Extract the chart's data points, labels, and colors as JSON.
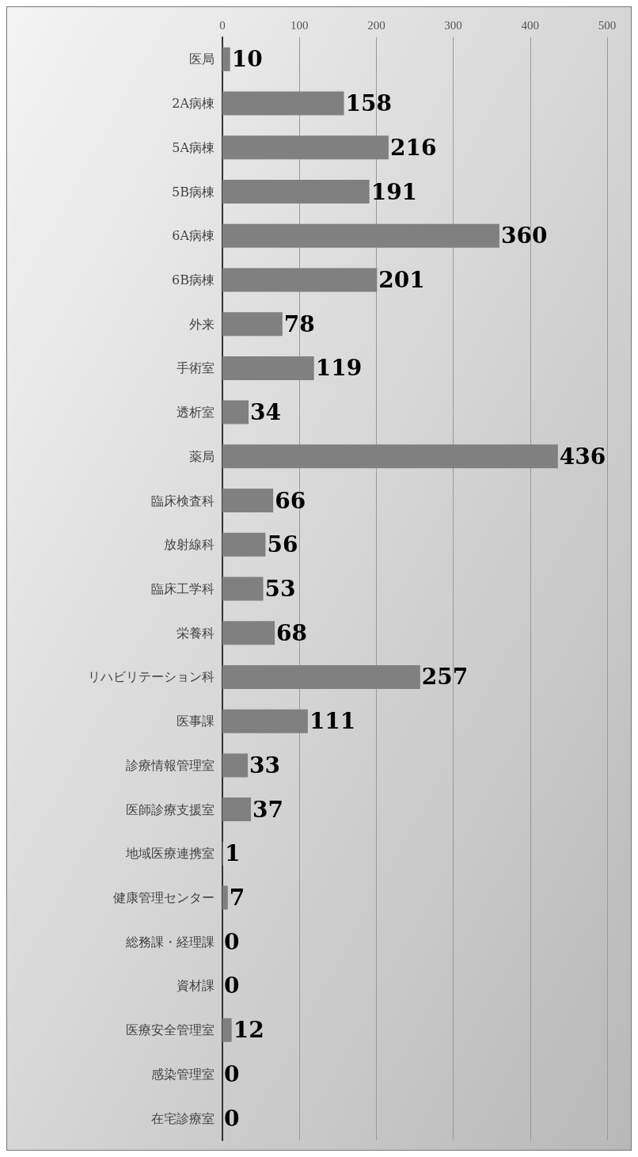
{
  "chart_data": {
    "type": "bar",
    "orientation": "horizontal",
    "categories": [
      "医局",
      "2A病棟",
      "5A病棟",
      "5B病棟",
      "6A病棟",
      "6B病棟",
      "外来",
      "手術室",
      "透析室",
      "薬局",
      "臨床検査科",
      "放射線科",
      "臨床工学科",
      "栄養科",
      "リハビリテーション科",
      "医事課",
      "診療情報管理室",
      "医師診療支援室",
      "地域医療連携室",
      "健康管理センター",
      "総務課・経理課",
      "資材課",
      "医療安全管理室",
      "感染管理室",
      "在宅診療室"
    ],
    "values": [
      10,
      158,
      216,
      191,
      360,
      201,
      78,
      119,
      34,
      436,
      66,
      56,
      53,
      68,
      257,
      111,
      33,
      37,
      1,
      7,
      0,
      0,
      12,
      0,
      0
    ],
    "color": "#808080",
    "xlim": [
      0,
      500
    ],
    "xticks": [
      0,
      100,
      200,
      300,
      400,
      500
    ],
    "grid": "x",
    "data_labels": true
  }
}
